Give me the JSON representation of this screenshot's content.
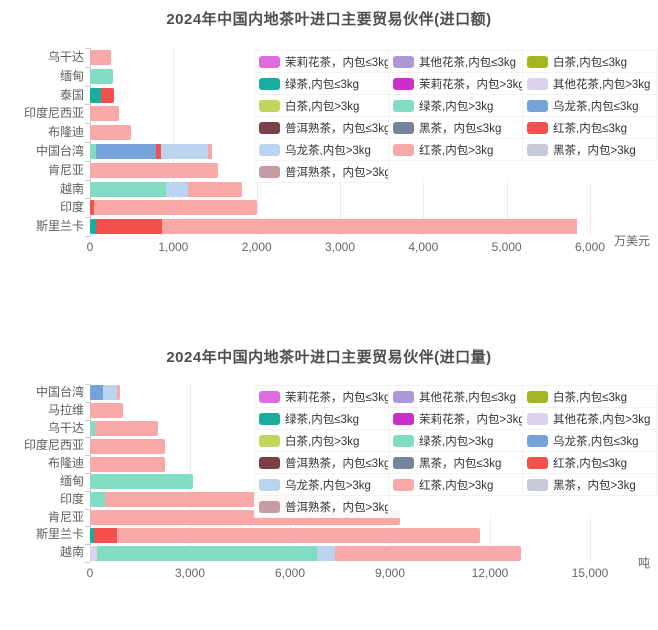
{
  "page": {
    "background": "#ffffff"
  },
  "chart_data": [
    {
      "id": "import-value",
      "type": "bar",
      "orientation": "horizontal",
      "title": "2024年中国内地茶叶进口主要贸易伙伴(进口额)",
      "unit": "万美元",
      "xlim": [
        0,
        6000
      ],
      "xtick_values": [
        0,
        1000,
        2000,
        3000,
        4000,
        5000,
        6000
      ],
      "xtick_labels": [
        "0",
        "1,000",
        "2,000",
        "3,000",
        "4,000",
        "5,000",
        "6,000"
      ],
      "grid": true,
      "legend_position": "top-right",
      "categories": [
        "乌干达",
        "缅甸",
        "泰国",
        "印度尼西亚",
        "布隆迪",
        "中国台湾",
        "肯尼亚",
        "越南",
        "印度",
        "斯里兰卡"
      ],
      "series": [
        {
          "name": "绿茶,内包≤3kg",
          "values": [
            0,
            0,
            130,
            0,
            0,
            0,
            0,
            0,
            0,
            70
          ]
        },
        {
          "name": "其他花茶,内包>3kg",
          "values": [
            0,
            0,
            0,
            0,
            0,
            0,
            0,
            0,
            0,
            0
          ]
        },
        {
          "name": "绿茶,内包>3kg",
          "values": [
            0,
            280,
            0,
            0,
            0,
            70,
            0,
            910,
            0,
            0
          ]
        },
        {
          "name": "乌龙茶,内包≤3kg",
          "values": [
            0,
            0,
            0,
            0,
            0,
            720,
            0,
            0,
            0,
            0
          ]
        },
        {
          "name": "红茶,内包≤3kg",
          "values": [
            0,
            0,
            160,
            0,
            0,
            60,
            0,
            0,
            50,
            800
          ]
        },
        {
          "name": "乌龙茶,内包>3kg",
          "values": [
            0,
            0,
            0,
            0,
            0,
            570,
            0,
            265,
            0,
            0
          ]
        },
        {
          "name": "红茶,内包>3kg",
          "values": [
            250,
            0,
            0,
            350,
            490,
            50,
            1540,
            650,
            1950,
            4980
          ]
        }
      ]
    },
    {
      "id": "import-volume",
      "type": "bar",
      "orientation": "horizontal",
      "title": "2024年中国内地茶叶进口主要贸易伙伴(进口量)",
      "unit": "吨",
      "xlim": [
        0,
        15000
      ],
      "xtick_values": [
        0,
        3000,
        6000,
        9000,
        12000,
        15000
      ],
      "xtick_labels": [
        "0",
        "3,000",
        "6,000",
        "9,000",
        "12,000",
        "15,000"
      ],
      "grid": true,
      "legend_position": "top-right",
      "categories": [
        "中国台湾",
        "马拉维",
        "乌干达",
        "印度尼西亚",
        "布隆迪",
        "缅甸",
        "印度",
        "肯尼亚",
        "斯里兰卡",
        "越南"
      ],
      "series": [
        {
          "name": "绿茶,内包≤3kg",
          "values": [
            0,
            0,
            0,
            0,
            0,
            0,
            0,
            0,
            130,
            0
          ]
        },
        {
          "name": "其他花茶,内包>3kg",
          "values": [
            0,
            0,
            0,
            0,
            0,
            0,
            0,
            0,
            0,
            200
          ]
        },
        {
          "name": "绿茶,内包>3kg",
          "values": [
            0,
            0,
            150,
            0,
            0,
            3100,
            450,
            0,
            0,
            6600
          ]
        },
        {
          "name": "乌龙茶,内包≤3kg",
          "values": [
            390,
            0,
            0,
            0,
            0,
            0,
            0,
            0,
            0,
            0
          ]
        },
        {
          "name": "红茶,内包≤3kg",
          "values": [
            0,
            0,
            0,
            0,
            0,
            0,
            0,
            0,
            670,
            0
          ]
        },
        {
          "name": "乌龙茶,内包>3kg",
          "values": [
            420,
            0,
            0,
            0,
            0,
            0,
            0,
            0,
            0,
            550
          ]
        },
        {
          "name": "红茶,内包>3kg",
          "values": [
            90,
            1000,
            1900,
            2250,
            2250,
            0,
            5950,
            9300,
            10900,
            5580
          ]
        }
      ]
    }
  ],
  "series_colors": {
    "茉莉花茶,内包≤3kg": "#df6cdf",
    "其他花茶,内包≤3kg": "#ab9ad7",
    "白茶,内包≤3kg": "#a3b61f",
    "绿茶,内包≤3kg": "#17ae9d",
    "茉莉花茶,内包>3kg": "#cb2fcb",
    "其他花茶,内包>3kg": "#ddd2ec",
    "白茶,内包>3kg": "#c4d55b",
    "绿茶,内包>3kg": "#82dcc4",
    "乌龙茶,内包≤3kg": "#76a2da",
    "普洱熟茶,内包≤3kg": "#7b3f47",
    "黑茶,内包≤3kg": "#75839d",
    "红茶,内包≤3kg": "#f4504e",
    "乌龙茶,内包>3kg": "#bad4f0",
    "红茶,内包>3kg": "#f8a8a6",
    "黑茶,内包>3kg": "#c6c9d8",
    "普洱熟茶,内包>3kg": "#c79ba3"
  },
  "legend": {
    "entries": [
      {
        "label": "茉莉花茶，内包≤3kg",
        "color": "#df6cdf"
      },
      {
        "label": "其他花茶,内包≤3kg",
        "color": "#ab9ad7"
      },
      {
        "label": "白茶,内包≤3kg",
        "color": "#a3b61f"
      },
      {
        "label": "绿茶,内包≤3kg",
        "color": "#17ae9d"
      },
      {
        "label": "茉莉花茶，内包>3kg",
        "color": "#cb2fcb"
      },
      {
        "label": "其他花茶,内包>3kg",
        "color": "#ddd2ec"
      },
      {
        "label": "白茶,内包>3kg",
        "color": "#c4d55b"
      },
      {
        "label": "绿茶,内包>3kg",
        "color": "#82dcc4"
      },
      {
        "label": "乌龙茶,内包≤3kg",
        "color": "#76a2da"
      },
      {
        "label": "普洱熟茶，内包≤3kg",
        "color": "#7b3f47"
      },
      {
        "label": "黑茶，内包≤3kg",
        "color": "#75839d"
      },
      {
        "label": "红茶,内包≤3kg",
        "color": "#f4504e"
      },
      {
        "label": "乌龙茶,内包>3kg",
        "color": "#bad4f0"
      },
      {
        "label": "红茶,内包>3kg",
        "color": "#f8a8a6"
      },
      {
        "label": "黑茶，内包>3kg",
        "color": "#c6c9d8"
      },
      {
        "label": "普洱熟茶，内包>3kg",
        "color": "#c79ba3"
      }
    ]
  }
}
